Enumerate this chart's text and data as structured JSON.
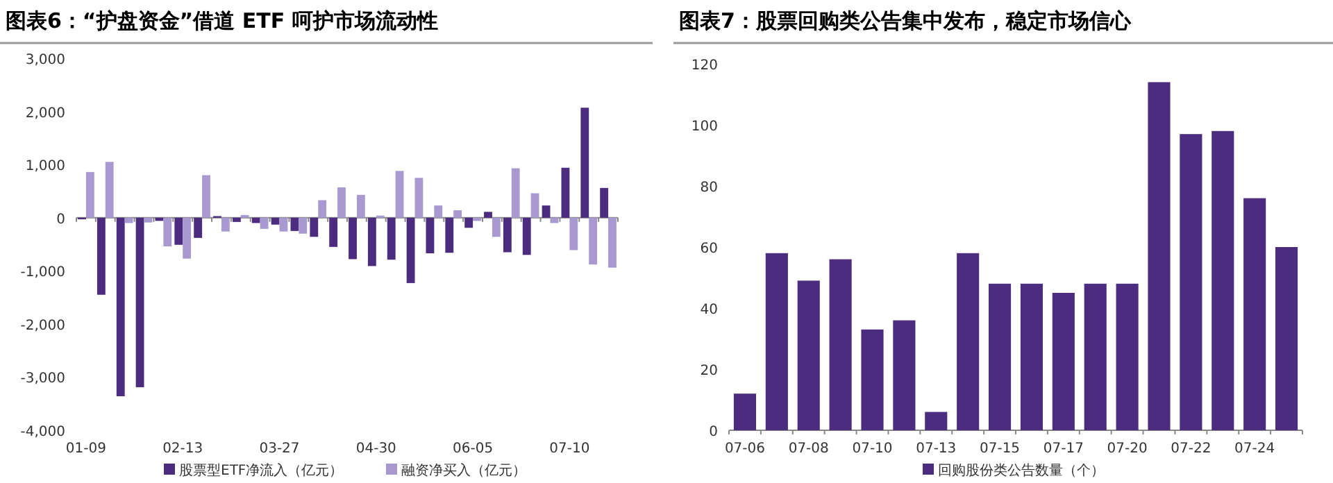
{
  "chart_data": [
    {
      "type": "bar",
      "title": "图表6：“护盘资金”借道 ETF 呵护市场流动性",
      "categories": [
        "01-09",
        null,
        null,
        null,
        null,
        "02-13",
        null,
        null,
        null,
        null,
        "03-27",
        null,
        null,
        null,
        null,
        "04-30",
        null,
        null,
        null,
        null,
        "06-05",
        null,
        null,
        null,
        null,
        "07-10",
        null,
        null
      ],
      "series": [
        {
          "name": "股票型ETF净流入（亿元）",
          "color": "#4b2c7f",
          "values": [
            -30,
            -1450,
            -3360,
            -3190,
            -60,
            -510,
            -380,
            30,
            -80,
            -100,
            -130,
            -250,
            -360,
            -550,
            -780,
            -910,
            -790,
            -1230,
            -670,
            -660,
            -190,
            110,
            -650,
            -700,
            230,
            940,
            2070,
            560
          ]
        },
        {
          "name": "融资净买入（亿元）",
          "color": "#a899d0",
          "values": [
            860,
            1050,
            -100,
            -90,
            -540,
            -770,
            800,
            -260,
            50,
            -210,
            -260,
            -300,
            330,
            570,
            430,
            40,
            880,
            750,
            230,
            140,
            -60,
            -360,
            930,
            460,
            -100,
            -610,
            -880,
            -940
          ]
        }
      ],
      "ylim": [
        -4000,
        3000
      ],
      "yticks": [
        {
          "value": -4000,
          "label": "-4,000"
        },
        {
          "value": -3000,
          "label": "-3,000"
        },
        {
          "value": -2000,
          "label": "-2,000"
        },
        {
          "value": -1000,
          "label": "-1,000"
        },
        0,
        {
          "value": 1000,
          "label": "1,000"
        },
        {
          "value": 2000,
          "label": "2,000"
        },
        {
          "value": 3000,
          "label": "3,000"
        }
      ],
      "legend": "bottom"
    },
    {
      "type": "bar",
      "title": "图表7：股票回购类公告集中发布，稳定市场信心",
      "categories": [
        "07-06",
        null,
        "07-08",
        null,
        "07-10",
        null,
        "07-13",
        null,
        "07-15",
        null,
        "07-17",
        null,
        "07-20",
        null,
        "07-22",
        null,
        "07-24",
        null
      ],
      "series": [
        {
          "name": "回购股份类公告数量（个）",
          "color": "#4b2c7f",
          "values": [
            12,
            58,
            49,
            56,
            33,
            36,
            6,
            58,
            48,
            48,
            45,
            48,
            48,
            114,
            97,
            98,
            76,
            60
          ]
        }
      ],
      "ylim": [
        0,
        120
      ],
      "yticks": [
        0,
        20,
        40,
        60,
        80,
        100,
        120
      ],
      "legend": "bottom"
    }
  ]
}
